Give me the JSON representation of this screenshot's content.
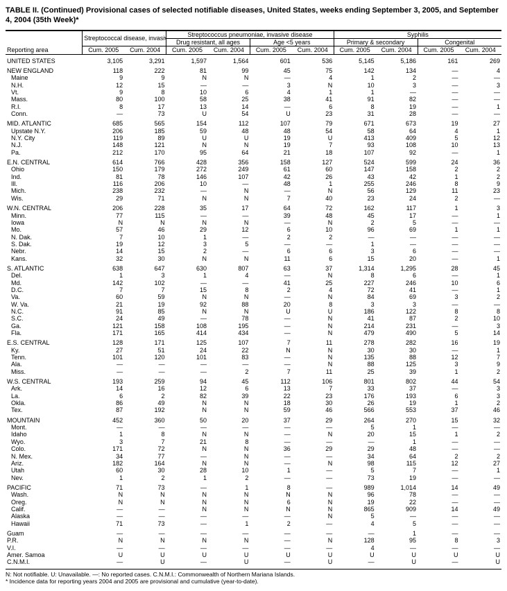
{
  "title": "TABLE II. (Continued) Provisional cases of selected notifiable diseases, United States, weeks ending September 3, 2005, and September 4, 2004 (35th Week)*",
  "col_headers": {
    "group1": "Streptococcal disease, invasive, group A",
    "group2": "Streptococcus pneumoniae, invasive disease",
    "group2a": "Drug resistant, all ages",
    "group2b": "Age <5 years",
    "group3": "Syphilis",
    "group3a": "Primary & secondary",
    "group3b": "Congenital",
    "cum2005": "Cum. 2005",
    "cum2004": "Cum. 2004",
    "reporting": "Reporting area"
  },
  "footnote": "N: Not notifiable.     U: Unavailable.     —: No reported cases.     C.N.M.I.: Commonwealth of Northern Mariana Islands.\n* Incidence data for reporting years 2004 and 2005 are provisional and cumulative (year-to-date).",
  "groups": [
    {
      "rows": [
        {
          "a": "UNITED STATES",
          "v": [
            "3,105",
            "3,291",
            "1,597",
            "1,564",
            "601",
            "536",
            "5,145",
            "5,186",
            "161",
            "269"
          ]
        }
      ]
    },
    {
      "rows": [
        {
          "a": "NEW ENGLAND",
          "v": [
            "118",
            "222",
            "81",
            "99",
            "45",
            "75",
            "142",
            "134",
            "—",
            "4"
          ]
        },
        {
          "a": "Maine",
          "i": 1,
          "v": [
            "9",
            "9",
            "N",
            "N",
            "—",
            "4",
            "1",
            "2",
            "—",
            "—"
          ]
        },
        {
          "a": "N.H.",
          "i": 1,
          "v": [
            "12",
            "15",
            "—",
            "—",
            "3",
            "N",
            "10",
            "3",
            "—",
            "3"
          ]
        },
        {
          "a": "Vt.",
          "i": 1,
          "v": [
            "9",
            "8",
            "10",
            "6",
            "4",
            "1",
            "1",
            "—",
            "—",
            "—"
          ]
        },
        {
          "a": "Mass.",
          "i": 1,
          "v": [
            "80",
            "100",
            "58",
            "25",
            "38",
            "41",
            "91",
            "82",
            "—",
            "—"
          ]
        },
        {
          "a": "R.I.",
          "i": 1,
          "v": [
            "8",
            "17",
            "13",
            "14",
            "—",
            "6",
            "8",
            "19",
            "—",
            "1"
          ]
        },
        {
          "a": "Conn.",
          "i": 1,
          "v": [
            "—",
            "73",
            "U",
            "54",
            "U",
            "23",
            "31",
            "28",
            "—",
            "—"
          ]
        }
      ]
    },
    {
      "rows": [
        {
          "a": "MID. ATLANTIC",
          "v": [
            "685",
            "565",
            "154",
            "112",
            "107",
            "79",
            "671",
            "673",
            "19",
            "27"
          ]
        },
        {
          "a": "Upstate N.Y.",
          "i": 1,
          "v": [
            "206",
            "185",
            "59",
            "48",
            "48",
            "54",
            "58",
            "64",
            "4",
            "1"
          ]
        },
        {
          "a": "N.Y. City",
          "i": 1,
          "v": [
            "119",
            "89",
            "U",
            "U",
            "19",
            "U",
            "413",
            "409",
            "5",
            "12"
          ]
        },
        {
          "a": "N.J.",
          "i": 1,
          "v": [
            "148",
            "121",
            "N",
            "N",
            "19",
            "7",
            "93",
            "108",
            "10",
            "13"
          ]
        },
        {
          "a": "Pa.",
          "i": 1,
          "v": [
            "212",
            "170",
            "95",
            "64",
            "21",
            "18",
            "107",
            "92",
            "—",
            "1"
          ]
        }
      ]
    },
    {
      "rows": [
        {
          "a": "E.N. CENTRAL",
          "v": [
            "614",
            "766",
            "428",
            "356",
            "158",
            "127",
            "524",
            "599",
            "24",
            "36"
          ]
        },
        {
          "a": "Ohio",
          "i": 1,
          "v": [
            "150",
            "179",
            "272",
            "249",
            "61",
            "60",
            "147",
            "158",
            "2",
            "2"
          ]
        },
        {
          "a": "Ind.",
          "i": 1,
          "v": [
            "81",
            "78",
            "146",
            "107",
            "42",
            "26",
            "43",
            "42",
            "1",
            "2"
          ]
        },
        {
          "a": "Ill.",
          "i": 1,
          "v": [
            "116",
            "206",
            "10",
            "—",
            "48",
            "1",
            "255",
            "246",
            "8",
            "9"
          ]
        },
        {
          "a": "Mich.",
          "i": 1,
          "v": [
            "238",
            "232",
            "—",
            "N",
            "—",
            "N",
            "56",
            "129",
            "11",
            "23"
          ]
        },
        {
          "a": "Wis.",
          "i": 1,
          "v": [
            "29",
            "71",
            "N",
            "N",
            "7",
            "40",
            "23",
            "24",
            "2",
            "—"
          ]
        }
      ]
    },
    {
      "rows": [
        {
          "a": "W.N. CENTRAL",
          "v": [
            "206",
            "228",
            "35",
            "17",
            "64",
            "72",
            "162",
            "117",
            "1",
            "3"
          ]
        },
        {
          "a": "Minn.",
          "i": 1,
          "v": [
            "77",
            "115",
            "—",
            "—",
            "39",
            "48",
            "45",
            "17",
            "—",
            "1"
          ]
        },
        {
          "a": "Iowa",
          "i": 1,
          "v": [
            "N",
            "N",
            "N",
            "N",
            "—",
            "N",
            "2",
            "5",
            "—",
            "—"
          ]
        },
        {
          "a": "Mo.",
          "i": 1,
          "v": [
            "57",
            "46",
            "29",
            "12",
            "6",
            "10",
            "96",
            "69",
            "1",
            "1"
          ]
        },
        {
          "a": "N. Dak.",
          "i": 1,
          "v": [
            "7",
            "10",
            "1",
            "—",
            "2",
            "2",
            "—",
            "—",
            "—",
            "—"
          ]
        },
        {
          "a": "S. Dak.",
          "i": 1,
          "v": [
            "19",
            "12",
            "3",
            "5",
            "—",
            "—",
            "1",
            "—",
            "—",
            "—"
          ]
        },
        {
          "a": "Nebr.",
          "i": 1,
          "v": [
            "14",
            "15",
            "2",
            "—",
            "6",
            "6",
            "3",
            "6",
            "—",
            "—"
          ]
        },
        {
          "a": "Kans.",
          "i": 1,
          "v": [
            "32",
            "30",
            "N",
            "N",
            "11",
            "6",
            "15",
            "20",
            "—",
            "1"
          ]
        }
      ]
    },
    {
      "rows": [
        {
          "a": "S. ATLANTIC",
          "v": [
            "638",
            "647",
            "630",
            "807",
            "63",
            "37",
            "1,314",
            "1,295",
            "28",
            "45"
          ]
        },
        {
          "a": "Del.",
          "i": 1,
          "v": [
            "1",
            "3",
            "1",
            "4",
            "—",
            "N",
            "8",
            "6",
            "—",
            "1"
          ]
        },
        {
          "a": "Md.",
          "i": 1,
          "v": [
            "142",
            "102",
            "—",
            "—",
            "41",
            "25",
            "227",
            "246",
            "10",
            "6"
          ]
        },
        {
          "a": "D.C.",
          "i": 1,
          "v": [
            "7",
            "7",
            "15",
            "8",
            "2",
            "4",
            "72",
            "41",
            "—",
            "1"
          ]
        },
        {
          "a": "Va.",
          "i": 1,
          "v": [
            "60",
            "59",
            "N",
            "N",
            "—",
            "N",
            "84",
            "69",
            "3",
            "2"
          ]
        },
        {
          "a": "W. Va.",
          "i": 1,
          "v": [
            "21",
            "19",
            "92",
            "88",
            "20",
            "8",
            "3",
            "3",
            "—",
            "—"
          ]
        },
        {
          "a": "N.C.",
          "i": 1,
          "v": [
            "91",
            "85",
            "N",
            "N",
            "U",
            "U",
            "186",
            "122",
            "8",
            "8"
          ]
        },
        {
          "a": "S.C.",
          "i": 1,
          "v": [
            "24",
            "49",
            "—",
            "78",
            "—",
            "N",
            "41",
            "87",
            "2",
            "10"
          ]
        },
        {
          "a": "Ga.",
          "i": 1,
          "v": [
            "121",
            "158",
            "108",
            "195",
            "—",
            "N",
            "214",
            "231",
            "—",
            "3"
          ]
        },
        {
          "a": "Fla.",
          "i": 1,
          "v": [
            "171",
            "165",
            "414",
            "434",
            "—",
            "N",
            "479",
            "490",
            "5",
            "14"
          ]
        }
      ]
    },
    {
      "rows": [
        {
          "a": "E.S. CENTRAL",
          "v": [
            "128",
            "171",
            "125",
            "107",
            "7",
            "11",
            "278",
            "282",
            "16",
            "19"
          ]
        },
        {
          "a": "Ky.",
          "i": 1,
          "v": [
            "27",
            "51",
            "24",
            "22",
            "N",
            "N",
            "30",
            "30",
            "—",
            "1"
          ]
        },
        {
          "a": "Tenn.",
          "i": 1,
          "v": [
            "101",
            "120",
            "101",
            "83",
            "—",
            "N",
            "135",
            "88",
            "12",
            "7"
          ]
        },
        {
          "a": "Ala.",
          "i": 1,
          "v": [
            "—",
            "—",
            "—",
            "—",
            "—",
            "N",
            "88",
            "125",
            "3",
            "9"
          ]
        },
        {
          "a": "Miss.",
          "i": 1,
          "v": [
            "—",
            "—",
            "—",
            "2",
            "7",
            "11",
            "25",
            "39",
            "1",
            "2"
          ]
        }
      ]
    },
    {
      "rows": [
        {
          "a": "W.S. CENTRAL",
          "v": [
            "193",
            "259",
            "94",
            "45",
            "112",
            "106",
            "801",
            "802",
            "44",
            "54"
          ]
        },
        {
          "a": "Ark.",
          "i": 1,
          "v": [
            "14",
            "16",
            "12",
            "6",
            "13",
            "7",
            "33",
            "37",
            "—",
            "3"
          ]
        },
        {
          "a": "La.",
          "i": 1,
          "v": [
            "6",
            "2",
            "82",
            "39",
            "22",
            "23",
            "176",
            "193",
            "6",
            "3"
          ]
        },
        {
          "a": "Okla.",
          "i": 1,
          "v": [
            "86",
            "49",
            "N",
            "N",
            "18",
            "30",
            "26",
            "19",
            "1",
            "2"
          ]
        },
        {
          "a": "Tex.",
          "i": 1,
          "v": [
            "87",
            "192",
            "N",
            "N",
            "59",
            "46",
            "566",
            "553",
            "37",
            "46"
          ]
        }
      ]
    },
    {
      "rows": [
        {
          "a": "MOUNTAIN",
          "v": [
            "452",
            "360",
            "50",
            "20",
            "37",
            "29",
            "264",
            "270",
            "15",
            "32"
          ]
        },
        {
          "a": "Mont.",
          "i": 1,
          "v": [
            "—",
            "—",
            "—",
            "—",
            "—",
            "—",
            "5",
            "1",
            "—",
            "—"
          ]
        },
        {
          "a": "Idaho",
          "i": 1,
          "v": [
            "1",
            "8",
            "N",
            "N",
            "—",
            "N",
            "20",
            "15",
            "1",
            "2"
          ]
        },
        {
          "a": "Wyo.",
          "i": 1,
          "v": [
            "3",
            "7",
            "21",
            "8",
            "—",
            "—",
            "—",
            "1",
            "—",
            "—"
          ]
        },
        {
          "a": "Colo.",
          "i": 1,
          "v": [
            "171",
            "72",
            "N",
            "N",
            "36",
            "29",
            "29",
            "48",
            "—",
            "—"
          ]
        },
        {
          "a": "N. Mex.",
          "i": 1,
          "v": [
            "34",
            "77",
            "—",
            "N",
            "—",
            "—",
            "34",
            "64",
            "2",
            "2"
          ]
        },
        {
          "a": "Ariz.",
          "i": 1,
          "v": [
            "182",
            "164",
            "N",
            "N",
            "—",
            "N",
            "98",
            "115",
            "12",
            "27"
          ]
        },
        {
          "a": "Utah",
          "i": 1,
          "v": [
            "60",
            "30",
            "28",
            "10",
            "1",
            "—",
            "5",
            "7",
            "—",
            "1"
          ]
        },
        {
          "a": "Nev.",
          "i": 1,
          "v": [
            "1",
            "2",
            "1",
            "2",
            "—",
            "—",
            "73",
            "19",
            "—",
            "—"
          ]
        }
      ]
    },
    {
      "rows": [
        {
          "a": "PACIFIC",
          "v": [
            "71",
            "73",
            "—",
            "1",
            "8",
            "—",
            "989",
            "1,014",
            "14",
            "49"
          ]
        },
        {
          "a": "Wash.",
          "i": 1,
          "v": [
            "N",
            "N",
            "N",
            "N",
            "N",
            "N",
            "96",
            "78",
            "—",
            "—"
          ]
        },
        {
          "a": "Oreg.",
          "i": 1,
          "v": [
            "N",
            "N",
            "N",
            "N",
            "6",
            "N",
            "19",
            "22",
            "—",
            "—"
          ]
        },
        {
          "a": "Calif.",
          "i": 1,
          "v": [
            "—",
            "—",
            "N",
            "N",
            "N",
            "N",
            "865",
            "909",
            "14",
            "49"
          ]
        },
        {
          "a": "Alaska",
          "i": 1,
          "v": [
            "—",
            "—",
            "—",
            "—",
            "—",
            "N",
            "5",
            "—",
            "—",
            "—"
          ]
        },
        {
          "a": "Hawaii",
          "i": 1,
          "v": [
            "71",
            "73",
            "—",
            "1",
            "2",
            "—",
            "4",
            "5",
            "—",
            "—"
          ]
        }
      ]
    },
    {
      "rows": [
        {
          "a": "Guam",
          "v": [
            "—",
            "—",
            "—",
            "—",
            "—",
            "—",
            "—",
            "1",
            "—",
            "—"
          ]
        },
        {
          "a": "P.R.",
          "v": [
            "N",
            "N",
            "N",
            "N",
            "—",
            "N",
            "128",
            "95",
            "8",
            "3"
          ]
        },
        {
          "a": "V.I.",
          "v": [
            "—",
            "—",
            "—",
            "—",
            "—",
            "—",
            "4",
            "—",
            "—",
            "—"
          ]
        },
        {
          "a": "Amer. Samoa",
          "v": [
            "U",
            "U",
            "U",
            "U",
            "U",
            "U",
            "U",
            "U",
            "U",
            "U"
          ]
        },
        {
          "a": "C.N.M.I.",
          "v": [
            "—",
            "U",
            "—",
            "U",
            "—",
            "U",
            "—",
            "U",
            "—",
            "U"
          ]
        }
      ]
    }
  ]
}
